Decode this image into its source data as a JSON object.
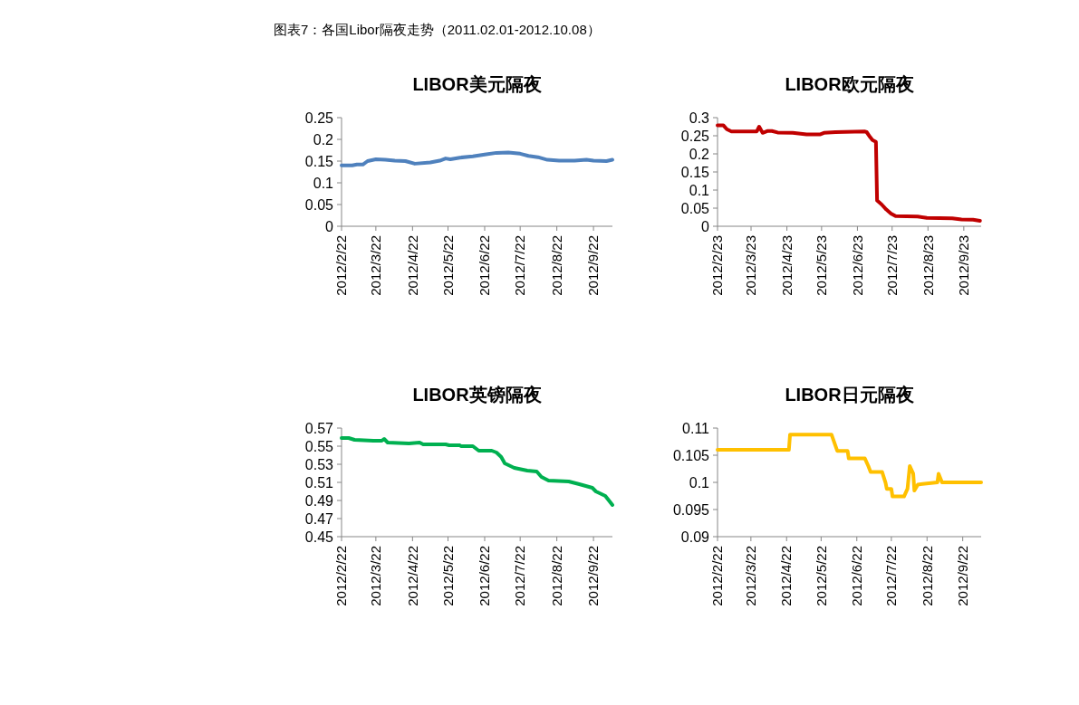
{
  "chart_data": [
    {
      "type": "line",
      "title": "LIBOR美元隔夜",
      "annotations": [
        "图表7：各国Libor隔夜走势（2011.02.01-2012.10.08）"
      ],
      "grid": false,
      "marker": "none",
      "line_style": "solid",
      "xlim": [
        "2012-02-22",
        "2012-10-08"
      ],
      "xticks": [
        {
          "value": "2012-02-22",
          "label": "2012/2/22"
        },
        {
          "value": "2012-03-22",
          "label": "2012/3/22"
        },
        {
          "value": "2012-04-22",
          "label": "2012/4/22"
        },
        {
          "value": "2012-05-22",
          "label": "2012/5/22"
        },
        {
          "value": "2012-06-22",
          "label": "2012/6/22"
        },
        {
          "value": "2012-07-22",
          "label": "2012/7/22"
        },
        {
          "value": "2012-08-22",
          "label": "2012/8/22"
        },
        {
          "value": "2012-09-22",
          "label": "2012/9/22"
        }
      ],
      "ylim": [
        0,
        0.25
      ],
      "yticks": [
        0,
        0.05,
        0.1,
        0.15,
        0.2,
        0.25
      ],
      "series": [
        {
          "color": "#4f81bd",
          "x": [
            "2012-02-22",
            "2012-03-02",
            "2012-03-06",
            "2012-03-11",
            "2012-03-15",
            "2012-03-22",
            "2012-03-30",
            "2012-04-07",
            "2012-04-16",
            "2012-04-24",
            "2012-05-07",
            "2012-05-15",
            "2012-05-20",
            "2012-05-24",
            "2012-06-01",
            "2012-06-12",
            "2012-06-22",
            "2012-07-02",
            "2012-07-12",
            "2012-07-22",
            "2012-07-29",
            "2012-08-06",
            "2012-08-14",
            "2012-08-24",
            "2012-09-06",
            "2012-09-16",
            "2012-09-22",
            "2012-10-03",
            "2012-10-08"
          ],
          "values": [
            0.14,
            0.14,
            0.142,
            0.142,
            0.15,
            0.154,
            0.153,
            0.151,
            0.15,
            0.144,
            0.147,
            0.151,
            0.156,
            0.154,
            0.158,
            0.161,
            0.165,
            0.169,
            0.17,
            0.167,
            0.162,
            0.159,
            0.153,
            0.151,
            0.151,
            0.153,
            0.151,
            0.15,
            0.153
          ]
        }
      ]
    },
    {
      "type": "line",
      "title": "LIBOR欧元隔夜",
      "grid": false,
      "marker": "none",
      "line_style": "solid",
      "xlim": [
        "2012-02-23",
        "2012-10-08"
      ],
      "xticks": [
        {
          "value": "2012-02-23",
          "label": "2012/2/23"
        },
        {
          "value": "2012-03-23",
          "label": "2012/3/23"
        },
        {
          "value": "2012-04-23",
          "label": "2012/4/23"
        },
        {
          "value": "2012-05-23",
          "label": "2012/5/23"
        },
        {
          "value": "2012-06-23",
          "label": "2012/6/23"
        },
        {
          "value": "2012-07-23",
          "label": "2012/7/23"
        },
        {
          "value": "2012-08-23",
          "label": "2012/8/23"
        },
        {
          "value": "2012-09-23",
          "label": "2012/9/23"
        }
      ],
      "ylim": [
        0,
        0.3
      ],
      "yticks": [
        0,
        0.05,
        0.1,
        0.15,
        0.2,
        0.25,
        0.3
      ],
      "series": [
        {
          "color": "#c00000",
          "x": [
            "2012-02-23",
            "2012-02-28",
            "2012-03-02",
            "2012-03-06",
            "2012-03-28",
            "2012-03-30",
            "2012-04-02",
            "2012-04-06",
            "2012-04-10",
            "2012-04-15",
            "2012-04-28",
            "2012-05-10",
            "2012-05-22",
            "2012-05-25",
            "2012-06-04",
            "2012-06-29",
            "2012-07-01",
            "2012-07-04",
            "2012-07-06",
            "2012-07-09",
            "2012-07-10",
            "2012-07-14",
            "2012-07-18",
            "2012-07-22",
            "2012-07-26",
            "2012-08-14",
            "2012-08-22",
            "2012-09-13",
            "2012-09-21",
            "2012-10-01",
            "2012-10-07"
          ],
          "values": [
            0.279,
            0.279,
            0.268,
            0.262,
            0.262,
            0.275,
            0.258,
            0.263,
            0.263,
            0.259,
            0.258,
            0.254,
            0.254,
            0.258,
            0.26,
            0.262,
            0.26,
            0.246,
            0.238,
            0.233,
            0.071,
            0.06,
            0.046,
            0.035,
            0.028,
            0.027,
            0.023,
            0.022,
            0.019,
            0.018,
            0.015
          ]
        }
      ]
    },
    {
      "type": "line",
      "title": "LIBOR英镑隔夜",
      "grid": false,
      "marker": "none",
      "line_style": "solid",
      "xlim": [
        "2012-02-22",
        "2012-10-08"
      ],
      "xticks": [
        {
          "value": "2012-02-22",
          "label": "2012/2/22"
        },
        {
          "value": "2012-03-22",
          "label": "2012/3/22"
        },
        {
          "value": "2012-04-22",
          "label": "2012/4/22"
        },
        {
          "value": "2012-05-22",
          "label": "2012/5/22"
        },
        {
          "value": "2012-06-22",
          "label": "2012/6/22"
        },
        {
          "value": "2012-07-22",
          "label": "2012/7/22"
        },
        {
          "value": "2012-08-22",
          "label": "2012/8/22"
        },
        {
          "value": "2012-09-22",
          "label": "2012/9/22"
        }
      ],
      "ylim": [
        0.45,
        0.57
      ],
      "yticks": [
        0.45,
        0.47,
        0.49,
        0.51,
        0.53,
        0.55,
        0.57
      ],
      "series": [
        {
          "color": "#00b050",
          "x": [
            "2012-02-22",
            "2012-02-28",
            "2012-03-04",
            "2012-03-20",
            "2012-03-27",
            "2012-03-29",
            "2012-04-01",
            "2012-04-19",
            "2012-04-28",
            "2012-05-01",
            "2012-05-20",
            "2012-05-23",
            "2012-06-01",
            "2012-06-02",
            "2012-06-12",
            "2012-06-17",
            "2012-06-28",
            "2012-07-02",
            "2012-07-06",
            "2012-07-09",
            "2012-07-17",
            "2012-07-28",
            "2012-08-05",
            "2012-08-09",
            "2012-08-15",
            "2012-09-01",
            "2012-09-10",
            "2012-09-21",
            "2012-09-24",
            "2012-10-02",
            "2012-10-08"
          ],
          "values": [
            0.559,
            0.559,
            0.557,
            0.556,
            0.556,
            0.558,
            0.554,
            0.553,
            0.554,
            0.552,
            0.552,
            0.551,
            0.551,
            0.55,
            0.55,
            0.545,
            0.545,
            0.543,
            0.538,
            0.531,
            0.526,
            0.523,
            0.522,
            0.516,
            0.512,
            0.511,
            0.508,
            0.504,
            0.5,
            0.495,
            0.485
          ]
        }
      ]
    },
    {
      "type": "line",
      "title": "LIBOR日元隔夜",
      "grid": false,
      "marker": "none",
      "line_style": "solid",
      "xlim": [
        "2012-02-22",
        "2012-10-08"
      ],
      "xticks": [
        {
          "value": "2012-02-22",
          "label": "2012/2/22"
        },
        {
          "value": "2012-03-22",
          "label": "2012/3/22"
        },
        {
          "value": "2012-04-22",
          "label": "2012/4/22"
        },
        {
          "value": "2012-05-22",
          "label": "2012/5/22"
        },
        {
          "value": "2012-06-22",
          "label": "2012/6/22"
        },
        {
          "value": "2012-07-22",
          "label": "2012/7/22"
        },
        {
          "value": "2012-08-22",
          "label": "2012/8/22"
        },
        {
          "value": "2012-09-22",
          "label": "2012/9/22"
        }
      ],
      "ylim": [
        0.09,
        0.11
      ],
      "yticks": [
        0.09,
        0.095,
        0.1,
        0.105,
        0.11
      ],
      "series": [
        {
          "color": "#ffc000",
          "x": [
            "2012-02-22",
            "2012-04-24",
            "2012-04-25",
            "2012-05-31",
            "2012-06-05",
            "2012-06-14",
            "2012-06-15",
            "2012-06-29",
            "2012-07-02",
            "2012-07-04",
            "2012-07-14",
            "2012-07-17",
            "2012-07-18",
            "2012-07-22",
            "2012-07-23",
            "2012-08-02",
            "2012-08-05",
            "2012-08-07",
            "2012-08-10",
            "2012-08-11",
            "2012-08-14",
            "2012-08-31",
            "2012-09-01",
            "2012-09-04",
            "2012-10-08"
          ],
          "values": [
            0.106,
            0.106,
            0.1088,
            0.1088,
            0.1058,
            0.1058,
            0.1044,
            0.1044,
            0.103,
            0.1019,
            0.1019,
            0.0999,
            0.0988,
            0.0988,
            0.0974,
            0.0974,
            0.0988,
            0.103,
            0.1016,
            0.0985,
            0.0996,
            0.1,
            0.1016,
            0.1,
            0.1
          ]
        }
      ]
    }
  ]
}
